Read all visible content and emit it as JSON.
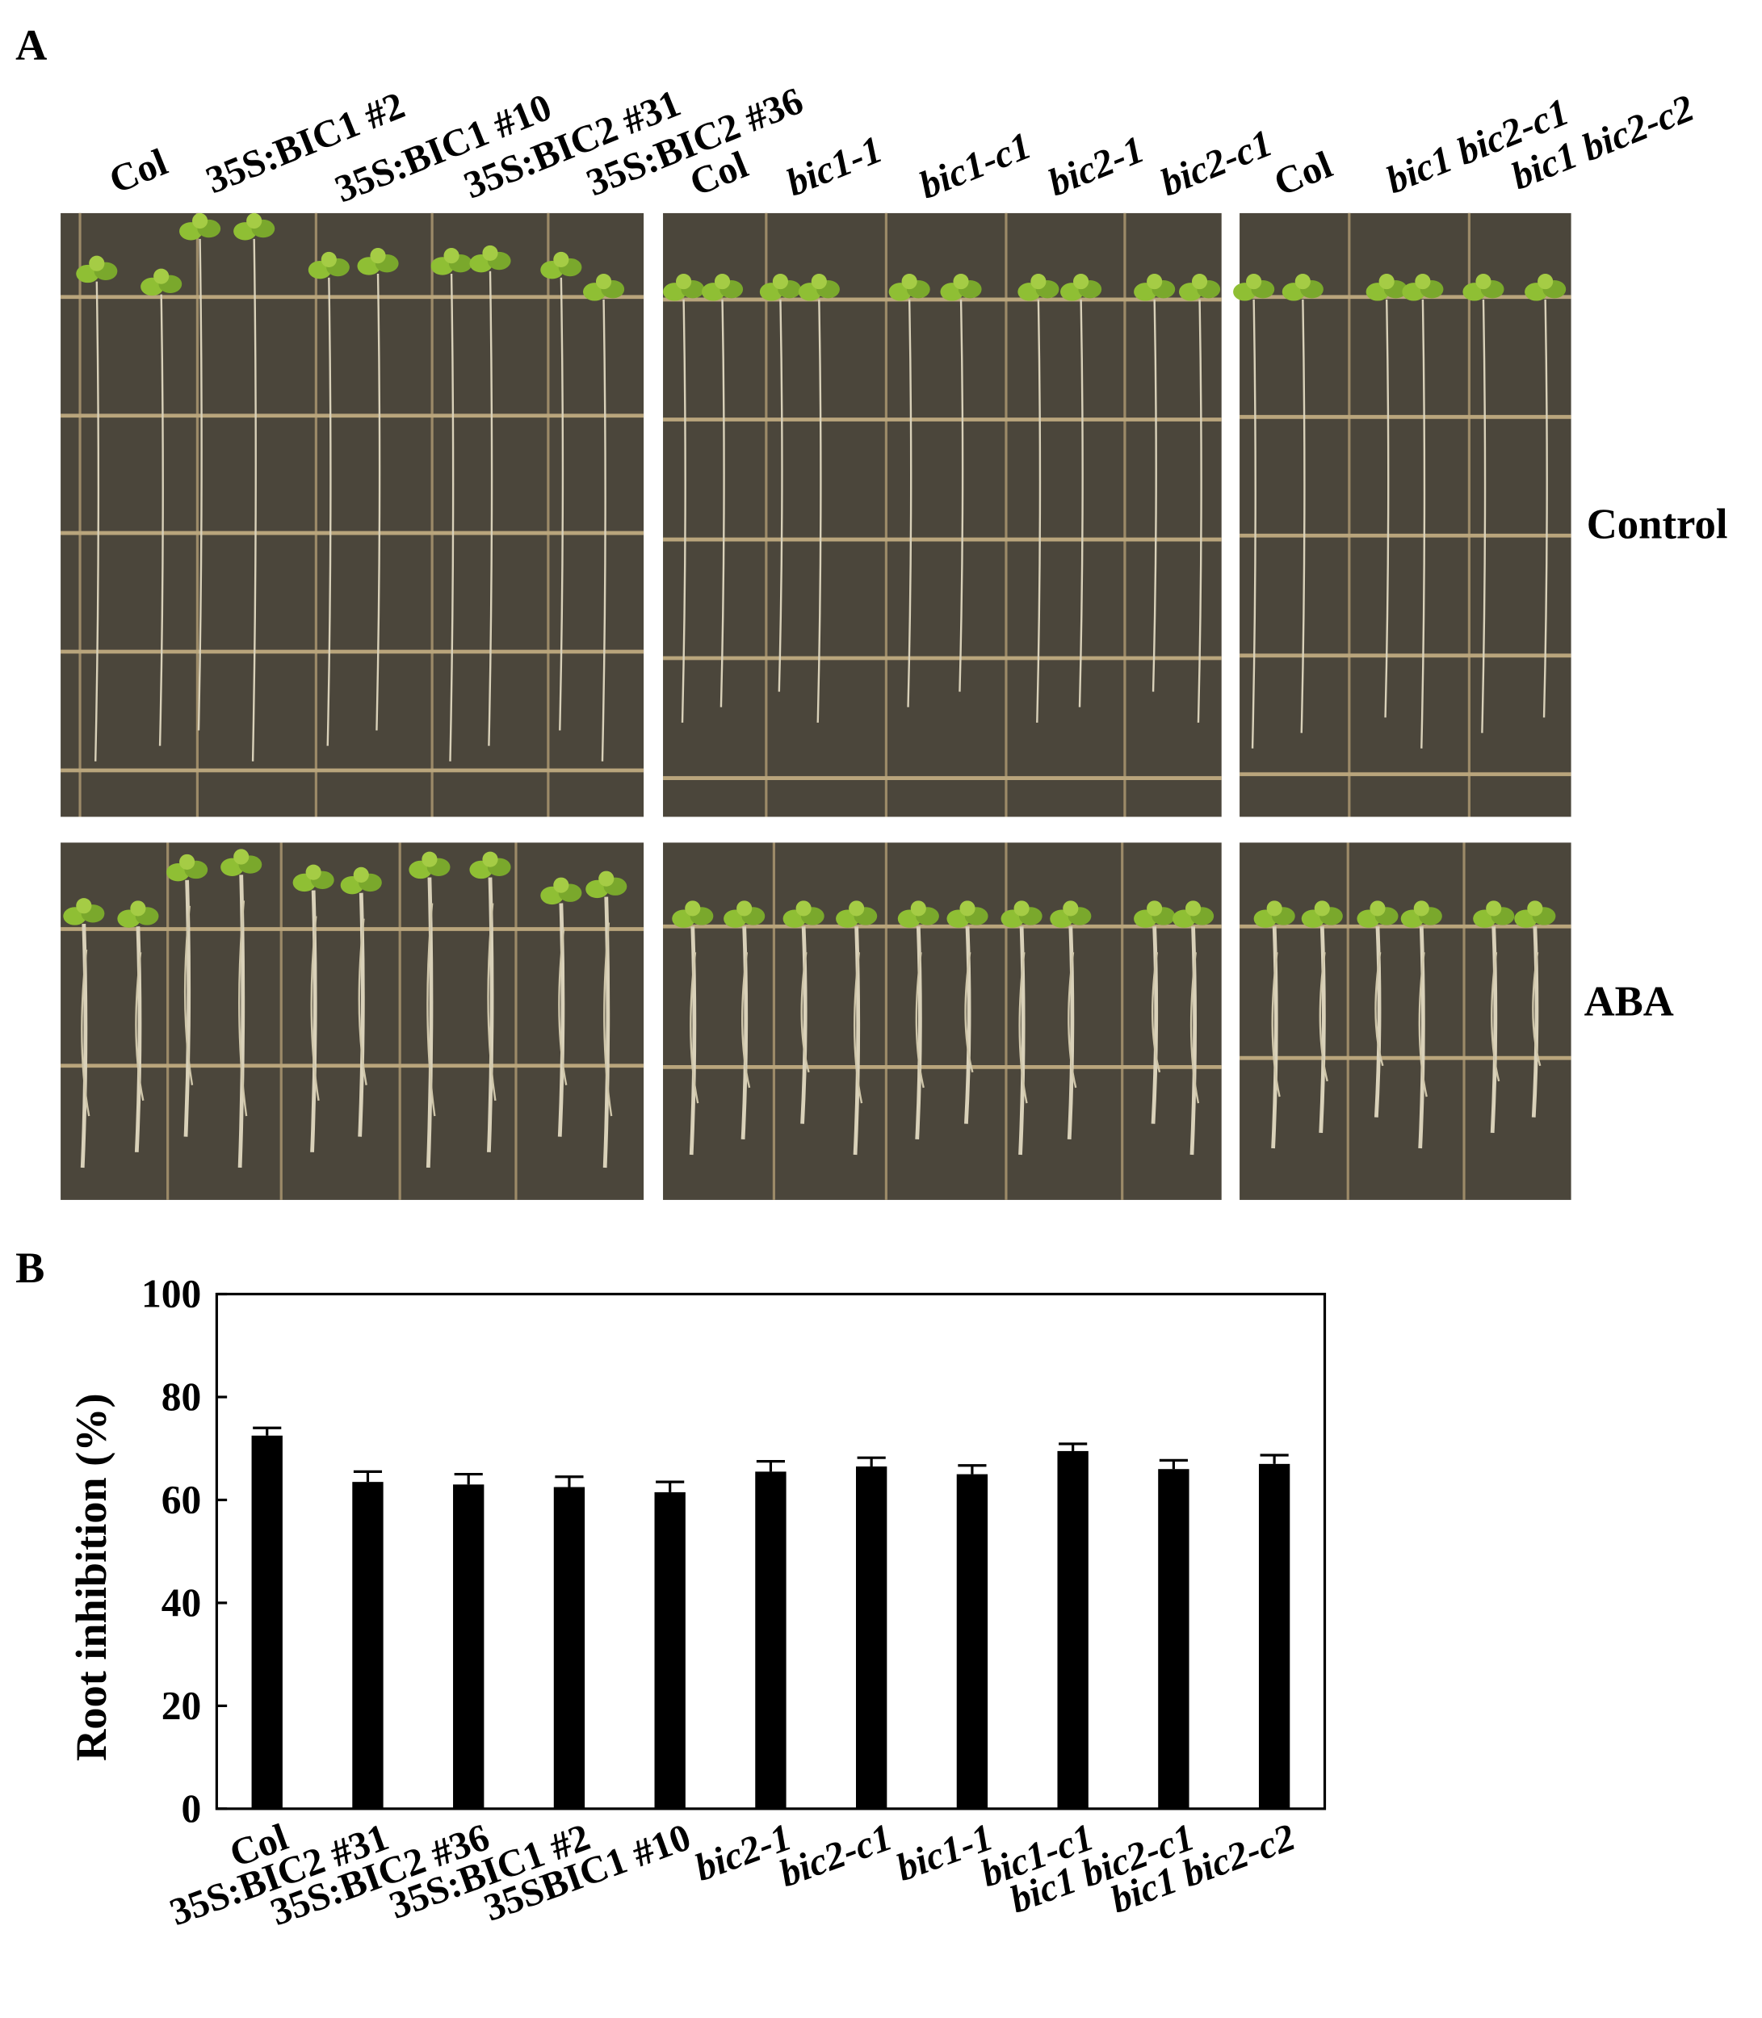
{
  "panel_a": {
    "label": "A",
    "groups": [
      [
        "Col",
        "35S:BIC1 #2",
        "35S:BIC1 #10",
        "35S:BIC2 #31",
        "35S:BIC2 #36"
      ],
      [
        "Col",
        "bic1-1",
        "bic1-c1",
        "bic2-1",
        "bic2-c1"
      ],
      [
        "Col",
        "bic1 bic2-c1",
        "bic1 bic2-c2"
      ]
    ],
    "rows": [
      "Control",
      "ABA"
    ]
  },
  "chart_data": {
    "type": "bar",
    "panel_label": "B",
    "ylabel": "Root inhibition (%)",
    "categories": [
      "Col",
      "35S:BIC2 #31",
      "35S:BIC2 #36",
      "35S:BIC1 #2",
      "35SBIC1 #10",
      "bic2-1",
      "bic2-c1",
      "bic1-1",
      "bic1-c1",
      "bic1 bic2-c1",
      "bic1 bic2-c2"
    ],
    "values": [
      72.5,
      63.5,
      63,
      62.5,
      61.5,
      65.5,
      66.5,
      65,
      69.5,
      66,
      67
    ],
    "errors": [
      1.5,
      2,
      2,
      2,
      2,
      2,
      1.7,
      1.7,
      1.4,
      1.7,
      1.7
    ],
    "color": "#000000",
    "ylim": [
      0,
      100
    ],
    "yticks": [
      0,
      20,
      40,
      60,
      80,
      100
    ]
  }
}
